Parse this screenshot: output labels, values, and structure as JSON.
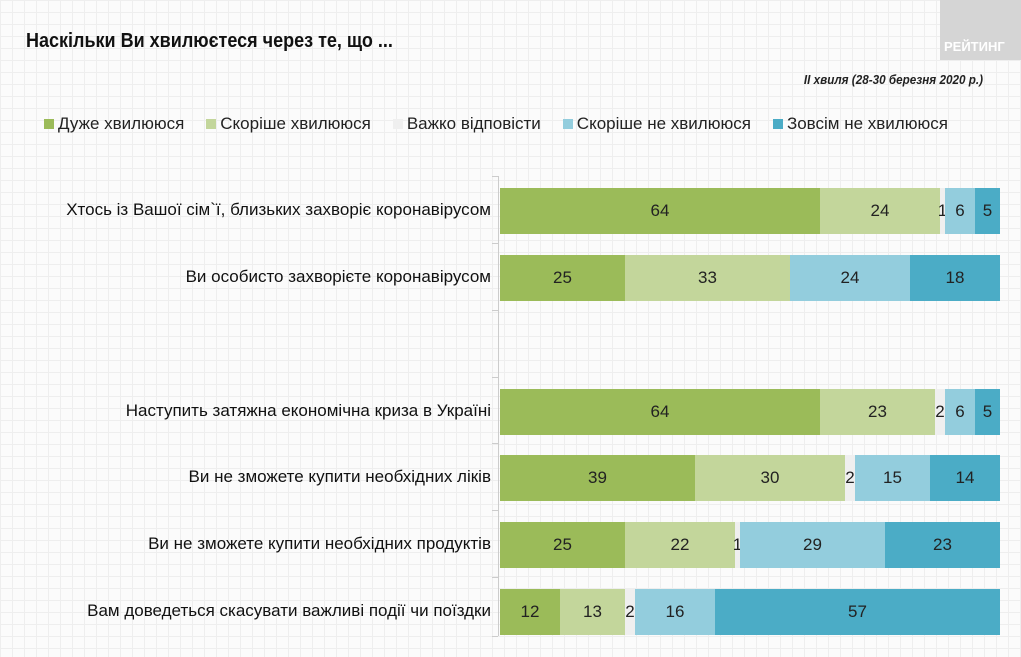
{
  "title": "Наскільки Ви хвилюєтеся через те, що ...",
  "logo_text": "РЕЙТИНГ",
  "subtitle": "ІІ хвиля (28-30 березня 2020 р.)",
  "chart_data": {
    "type": "bar",
    "orientation": "horizontal-stacked-100",
    "legend_position": "top",
    "series": [
      {
        "name": "Дуже хвилююся",
        "color": "#9bbb59"
      },
      {
        "name": "Скоріше хвилююся",
        "color": "#c3d69b"
      },
      {
        "name": "Важко відповісти",
        "color": "#efefef"
      },
      {
        "name": "Скоріше не хвилююся",
        "color": "#93cddd"
      },
      {
        "name": "Зовсім не хвилююся",
        "color": "#4bacc6"
      }
    ],
    "categories": [
      {
        "label": "Хтось із Вашої сім`ї, близьких захворіє коронавірусом",
        "values": [
          64,
          24,
          1,
          6,
          5
        ]
      },
      {
        "label": "Ви особисто захворієте коронавірусом",
        "values": [
          25,
          33,
          0,
          24,
          18
        ]
      },
      {
        "label": "Наступить затяжна економічна криза в Україні",
        "values": [
          64,
          23,
          2,
          6,
          5
        ]
      },
      {
        "label": "Ви не зможете купити необхідних ліків",
        "values": [
          39,
          30,
          2,
          15,
          14
        ]
      },
      {
        "label": "Ви не зможете купити необхідних продуктів",
        "values": [
          25,
          22,
          1,
          29,
          23
        ]
      },
      {
        "label": "Вам доведеться скасувати важливі події чи поїздки",
        "values": [
          12,
          13,
          2,
          16,
          57
        ]
      }
    ]
  }
}
